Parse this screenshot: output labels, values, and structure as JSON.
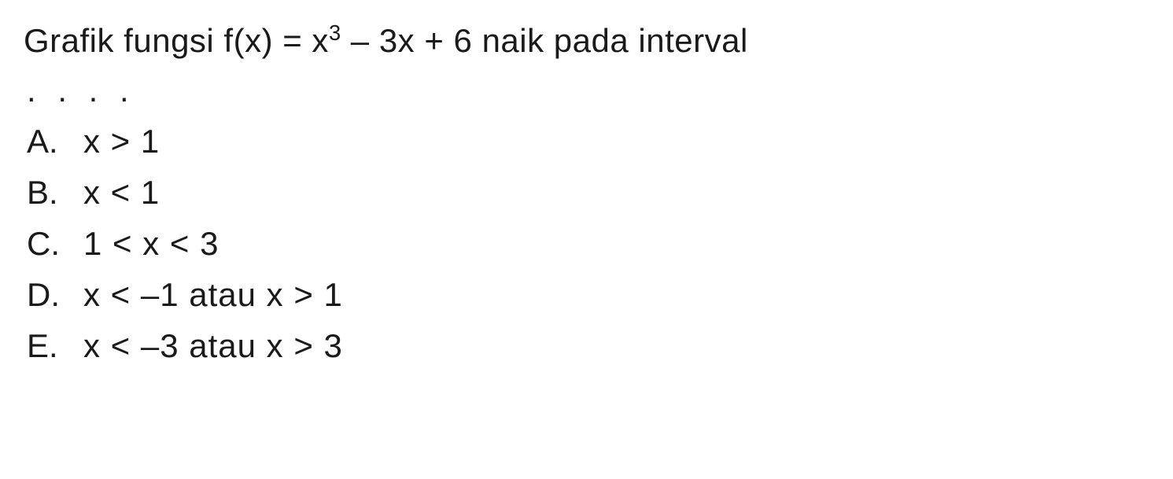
{
  "question": {
    "prefix": "Grafik fungsi f(x) = x",
    "exponent": "3",
    "suffix": " – 3x + 6 naik pada interval"
  },
  "dots": ". . . .",
  "options": [
    {
      "letter": "A.",
      "text": "x > 1"
    },
    {
      "letter": "B.",
      "text": "x < 1"
    },
    {
      "letter": "C.",
      "text": "1 < x < 3"
    },
    {
      "letter": "D.",
      "text": "x < –1 atau x > 1"
    },
    {
      "letter": "E.",
      "text": "x < –3 atau x > 3"
    }
  ],
  "style": {
    "background_color": "#ffffff",
    "text_color": "#1a1a1a",
    "font_family": "Arial, Helvetica, sans-serif",
    "question_fontsize": 42,
    "option_fontsize": 42,
    "line_height": 1.55
  }
}
